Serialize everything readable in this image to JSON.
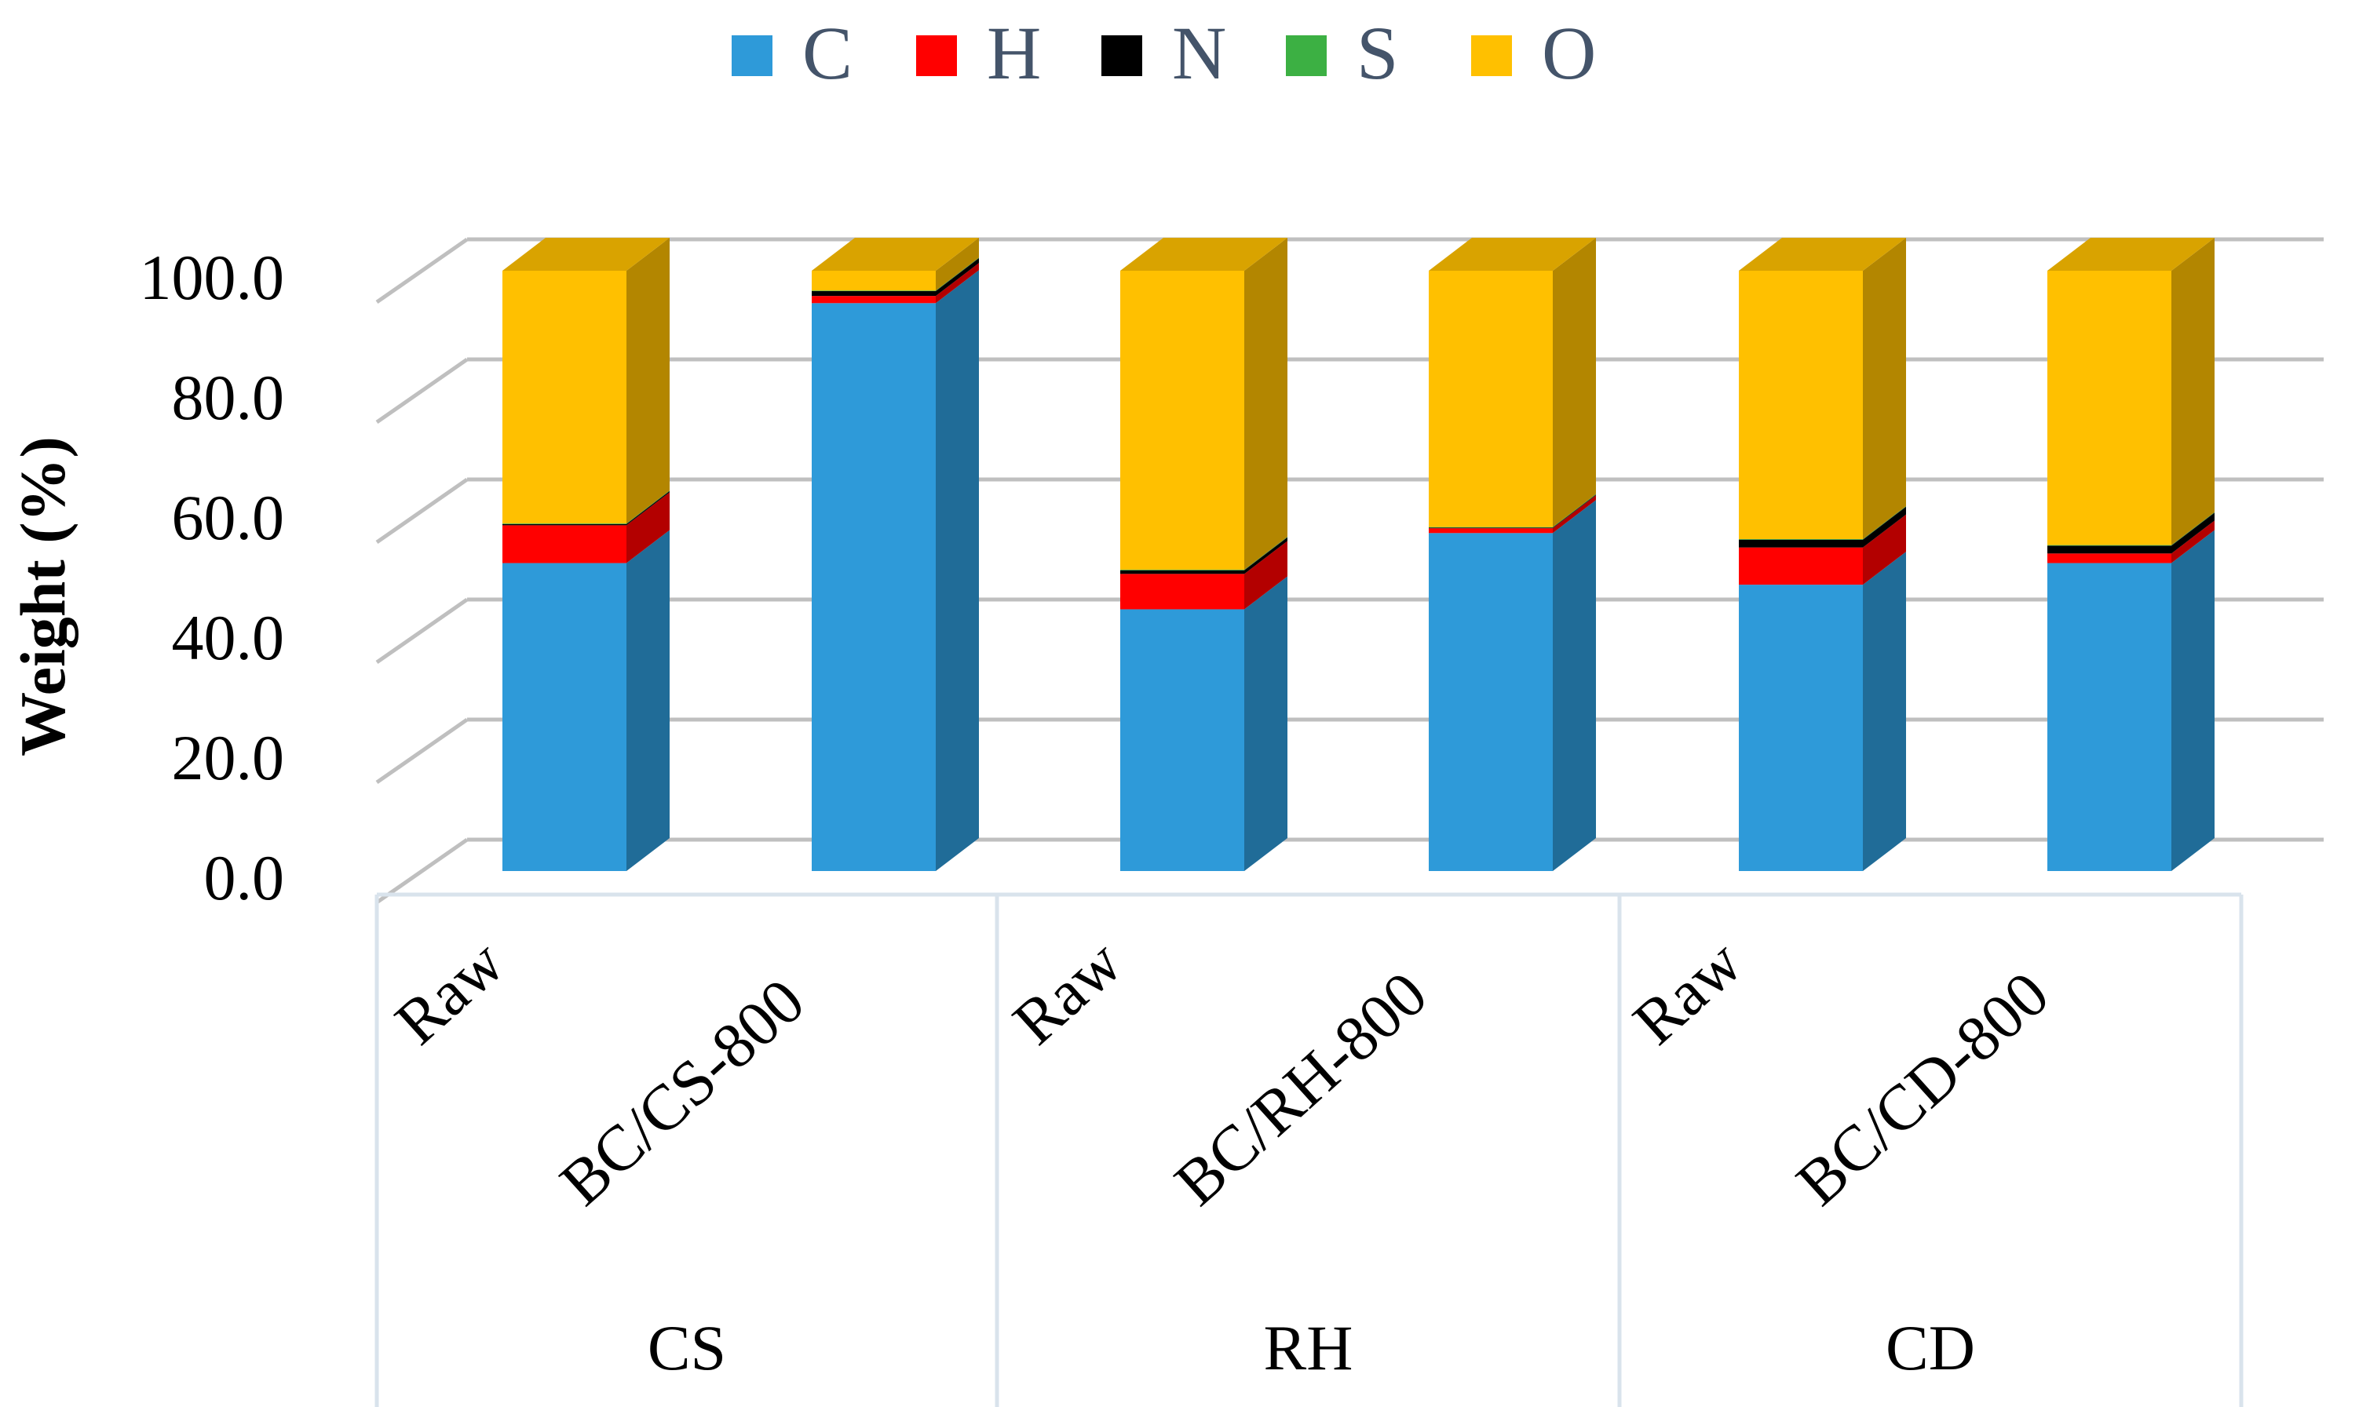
{
  "chart_data": {
    "type": "bar",
    "stacked": true,
    "three_d": true,
    "title": "",
    "ylabel": "Weight (%)",
    "xlabel": "",
    "ylim": [
      0,
      100
    ],
    "yticks": [
      "0.0",
      "20.0",
      "40.0",
      "60.0",
      "80.0",
      "100.0"
    ],
    "legend_position": "top-center",
    "grid": true,
    "groups": [
      {
        "label": "CS",
        "categories": [
          "Raw",
          "BC/CS-800"
        ]
      },
      {
        "label": "RH",
        "categories": [
          "Raw",
          "BC/RH-800"
        ]
      },
      {
        "label": "CD",
        "categories": [
          "Raw",
          "BC/CD-800"
        ]
      }
    ],
    "categories": [
      "Raw",
      "BC/CS-800",
      "Raw",
      "BC/RH-800",
      "Raw",
      "BC/CD-800"
    ],
    "series": [
      {
        "name": "C",
        "color": "#2e9ad9",
        "values": [
          51.3,
          94.6,
          43.6,
          56.3,
          47.7,
          51.3
        ]
      },
      {
        "name": "H",
        "color": "#ff0000",
        "values": [
          6.3,
          1.2,
          5.9,
          0.8,
          6.2,
          1.6
        ]
      },
      {
        "name": "N",
        "color": "#000000",
        "values": [
          0.2,
          0.8,
          0.6,
          0.1,
          1.3,
          1.3
        ]
      },
      {
        "name": "S",
        "color": "#3cb043",
        "values": [
          0.1,
          0.1,
          0.1,
          0.1,
          0.1,
          0.1
        ]
      },
      {
        "name": "O",
        "color": "#ffc000",
        "values": [
          42.1,
          3.3,
          49.8,
          42.7,
          44.7,
          45.7
        ]
      }
    ]
  }
}
